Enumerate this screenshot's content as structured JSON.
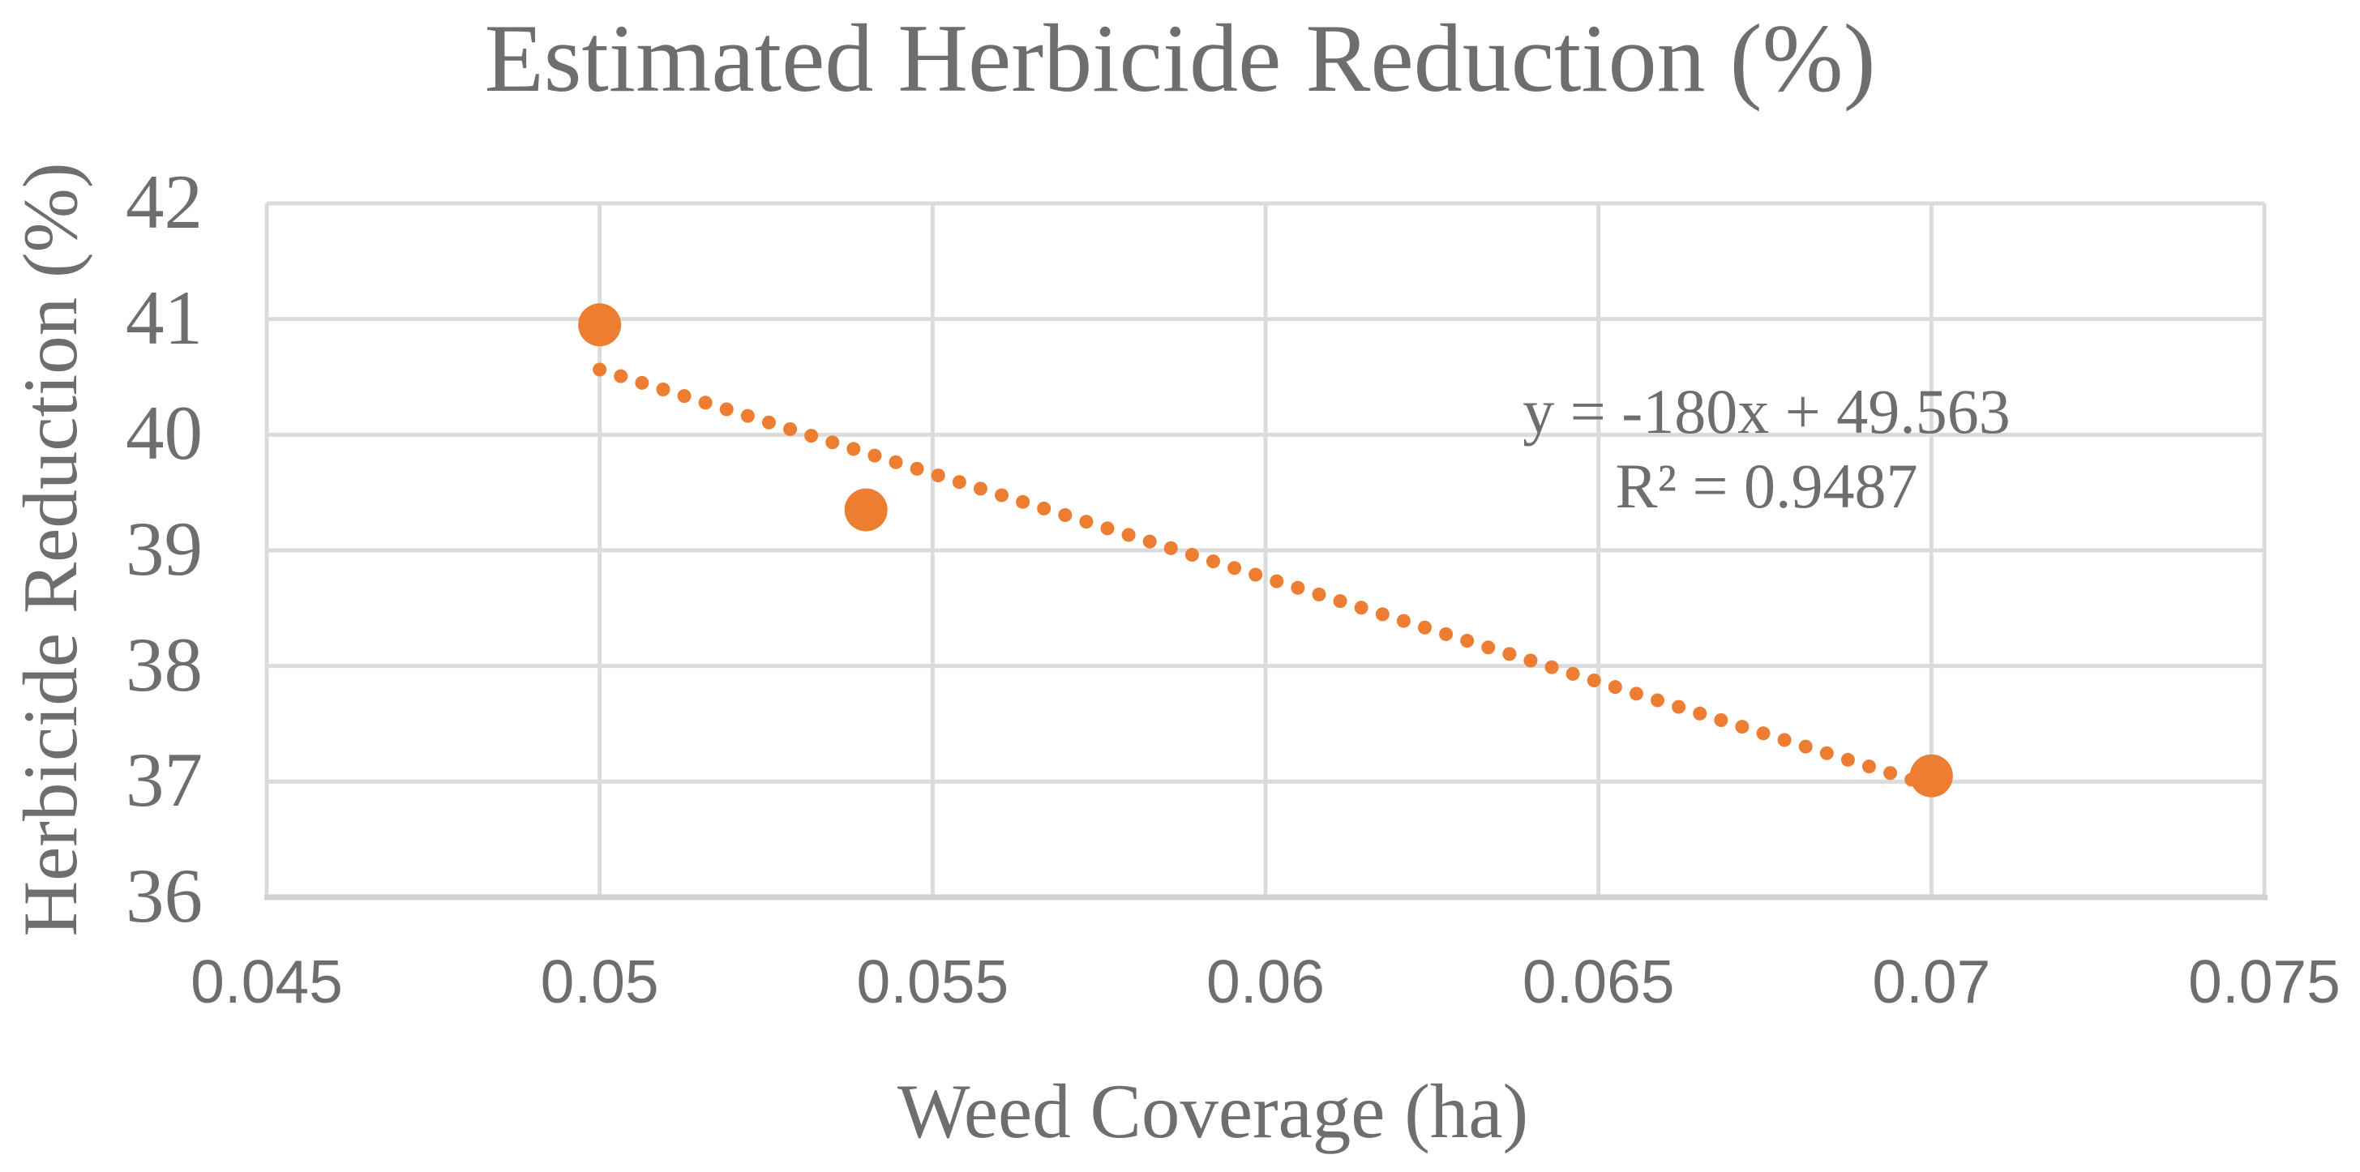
{
  "title": "Estimated Herbicide Reduction (%)",
  "colors": {
    "accent": "#ED7D31",
    "gridline": "#DBDBDB",
    "axis_line": "#D2D2D2",
    "text": "#6E6E6E"
  },
  "chart_data": {
    "type": "scatter",
    "title": "Estimated Herbicide Reduction (%)",
    "xlabel": "Weed Coverage (ha)",
    "ylabel": "Herbicide Reduction (%)",
    "xlim": [
      0.045,
      0.075
    ],
    "ylim": [
      36,
      42
    ],
    "x_ticks": [
      0.045,
      0.05,
      0.055,
      0.06,
      0.065,
      0.07,
      0.075
    ],
    "x_tick_labels": [
      "0.045",
      "0.05",
      "0.055",
      "0.06",
      "0.065",
      "0.07",
      "0.075"
    ],
    "y_ticks": [
      36,
      37,
      38,
      39,
      40,
      41,
      42
    ],
    "y_tick_labels": [
      "36",
      "37",
      "38",
      "39",
      "40",
      "41",
      "42"
    ],
    "grid": true,
    "legend": false,
    "series": [
      {
        "name": "Estimated Herbicide Reduction (%)",
        "marker": "circle",
        "points": [
          {
            "x": 0.05,
            "y": 40.95
          },
          {
            "x": 0.054,
            "y": 39.35
          },
          {
            "x": 0.07,
            "y": 37.05
          }
        ]
      }
    ],
    "trendline": {
      "type": "linear",
      "style": "dotted",
      "slope": -180,
      "intercept": 49.563,
      "x_start": 0.05,
      "x_end": 0.0697,
      "equation": "y = -180x + 49.563",
      "r_squared": 0.9487,
      "r_squared_label": "R² = 0.9487"
    }
  }
}
